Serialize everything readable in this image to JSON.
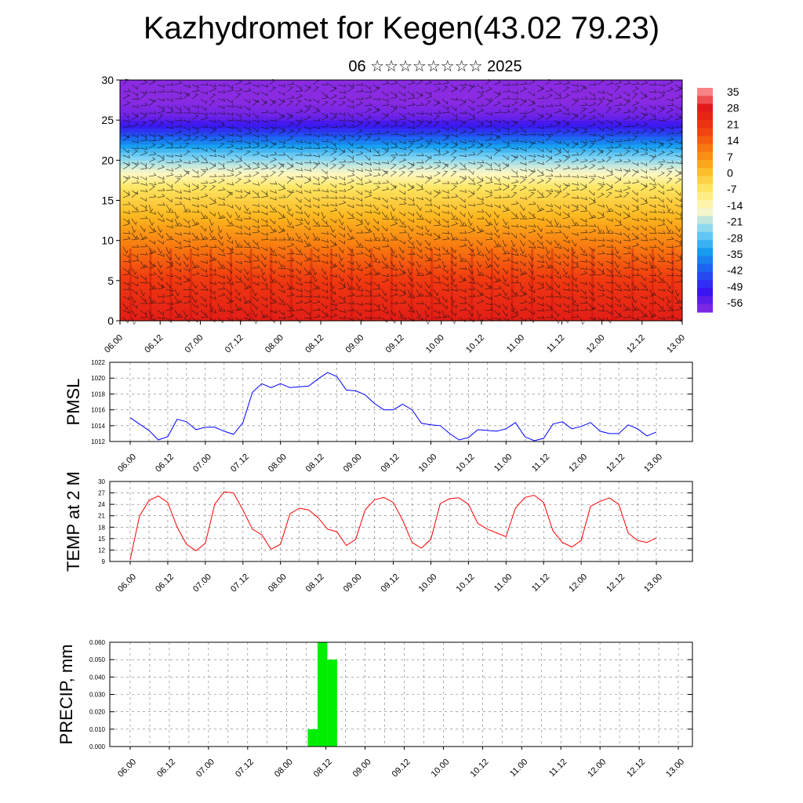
{
  "title": "Kazhydromet for Kegen(43.02 79.23)",
  "subtitle": "06 ☆☆☆☆☆☆☆☆ 2025",
  "time_labels": [
    "06.00",
    "06.12",
    "07.00",
    "07.12",
    "08.00",
    "08.12",
    "09.00",
    "09.12",
    "10.00",
    "10.12",
    "11.00",
    "11.12",
    "12.00",
    "12.12",
    "13.00"
  ],
  "chart_data": [
    {
      "type": "heatmap",
      "name": "temperature-wind cross-section",
      "x": [
        "06.00",
        "06.12",
        "07.00",
        "07.12",
        "08.00",
        "08.12",
        "09.00",
        "09.12",
        "10.00",
        "10.12",
        "11.00",
        "11.12",
        "12.00",
        "12.12",
        "13.00"
      ],
      "ylim": [
        0,
        30
      ],
      "yticks": [
        0,
        5,
        10,
        15,
        20,
        25,
        30
      ],
      "colorbar": {
        "labels": [
          "35",
          "28",
          "21",
          "14",
          "7",
          "0",
          "-7",
          "-14",
          "-21",
          "-28",
          "-35",
          "-42",
          "-49",
          "-56"
        ],
        "range": [
          -59,
          38
        ],
        "colors": [
          "#8a2be2",
          "#3a14f0",
          "#1e5af0",
          "#16a0f0",
          "#7fd4f4",
          "#fff8c8",
          "#fde868",
          "#fcb820",
          "#f87a10",
          "#f03a10",
          "#e01818",
          "#ff9ea0"
        ]
      },
      "profile": {
        "heights": [
          0,
          5,
          10,
          13,
          16.5,
          18.5,
          21,
          23.5,
          25.5,
          27.5,
          30
        ],
        "temps": [
          28,
          21,
          10,
          3,
          -5,
          -15,
          -27,
          -45,
          -56,
          -59,
          -59
        ]
      },
      "wind_barbs": true
    },
    {
      "type": "line",
      "ylabel": "PMSL",
      "ylim": [
        1012,
        1022
      ],
      "yticks": [
        1012,
        1014,
        1016,
        1018,
        1020,
        1022
      ],
      "grid": true,
      "color": "#0000ff",
      "y": [
        1015.0,
        1014.2,
        1013.4,
        1012.2,
        1012.6,
        1014.8,
        1014.5,
        1013.5,
        1013.8,
        1013.8,
        1013.3,
        1012.9,
        1014.4,
        1018.2,
        1019.3,
        1018.8,
        1019.3,
        1018.8,
        1018.9,
        1019.0,
        1019.9,
        1020.7,
        1020.2,
        1018.5,
        1018.4,
        1017.9,
        1016.8,
        1016.0,
        1016.0,
        1016.7,
        1016.0,
        1014.3,
        1014.1,
        1014.0,
        1013.0,
        1012.2,
        1012.5,
        1013.5,
        1013.4,
        1013.3,
        1013.6,
        1014.4,
        1012.6,
        1012.1,
        1012.4,
        1014.2,
        1014.5,
        1013.6,
        1013.9,
        1014.4,
        1013.3,
        1013.0,
        1013.0,
        1014.1,
        1013.6,
        1012.7,
        1013.2
      ]
    },
    {
      "type": "line",
      "ylabel": "TEMP at 2 M",
      "ylim": [
        9,
        30
      ],
      "yticks": [
        9,
        12,
        15,
        18,
        21,
        24,
        27,
        30
      ],
      "grid": true,
      "color": "#ff0000",
      "y": [
        9.5,
        21.0,
        25.0,
        26.2,
        24.5,
        18.0,
        13.5,
        11.8,
        13.8,
        24.0,
        27.3,
        27.0,
        22.5,
        17.5,
        16.0,
        12.2,
        13.5,
        21.5,
        23.0,
        22.5,
        20.5,
        17.5,
        16.8,
        13.2,
        14.8,
        22.5,
        25.2,
        25.8,
        24.5,
        19.8,
        14.0,
        12.5,
        14.8,
        24.2,
        25.5,
        25.7,
        24.0,
        19.0,
        17.5,
        16.5,
        15.5,
        23.0,
        25.8,
        26.4,
        24.5,
        17.0,
        14.0,
        12.8,
        14.5,
        23.5,
        24.8,
        25.7,
        24.0,
        16.5,
        14.5,
        14.0,
        15.2
      ]
    },
    {
      "type": "bar",
      "ylabel": "PRECIP, mm",
      "ylim": [
        0,
        0.06
      ],
      "yticks": [
        "0.000",
        "0.010",
        "0.020",
        "0.030",
        "0.040",
        "0.050",
        "0.060"
      ],
      "grid": true,
      "color": "#00ee00",
      "bars": [
        {
          "time": "08.06",
          "value": 0.01
        },
        {
          "time": "08.09",
          "value": 0.06
        },
        {
          "time": "08.12",
          "value": 0.05
        }
      ]
    }
  ]
}
